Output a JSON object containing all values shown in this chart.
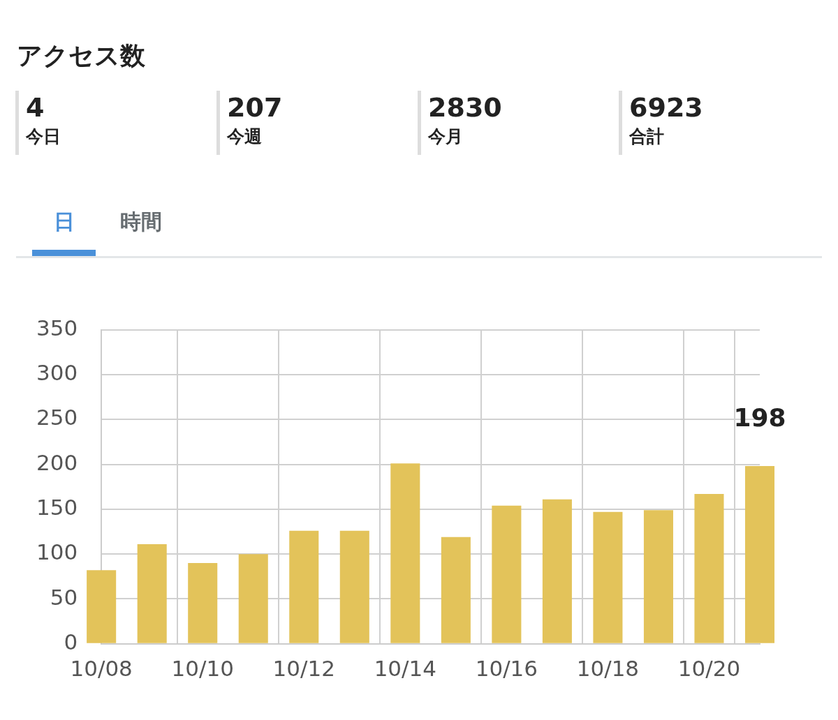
{
  "chart_data": {
    "type": "bar",
    "title": "アクセス数",
    "annotations": [
      "4",
      "今日",
      "207",
      "今週",
      "2830",
      "今月",
      "6923",
      "合計",
      "日",
      "時間"
    ],
    "categories": [
      "10/08",
      null,
      "10/10",
      null,
      "10/12",
      null,
      "10/14",
      null,
      "10/16",
      null,
      "10/18",
      null,
      "10/20",
      null
    ],
    "values": [
      82,
      111,
      90,
      100,
      126,
      126,
      201,
      119,
      154,
      161,
      147,
      149,
      167,
      198
    ],
    "value_labels": [
      null,
      null,
      null,
      null,
      null,
      null,
      null,
      null,
      null,
      null,
      null,
      null,
      null,
      "198"
    ],
    "color": "#e3c35a",
    "ylim": [
      0,
      350
    ],
    "yticks": [
      0,
      50,
      100,
      150,
      200,
      250,
      300,
      350
    ],
    "grid": true,
    "legend": false
  }
}
